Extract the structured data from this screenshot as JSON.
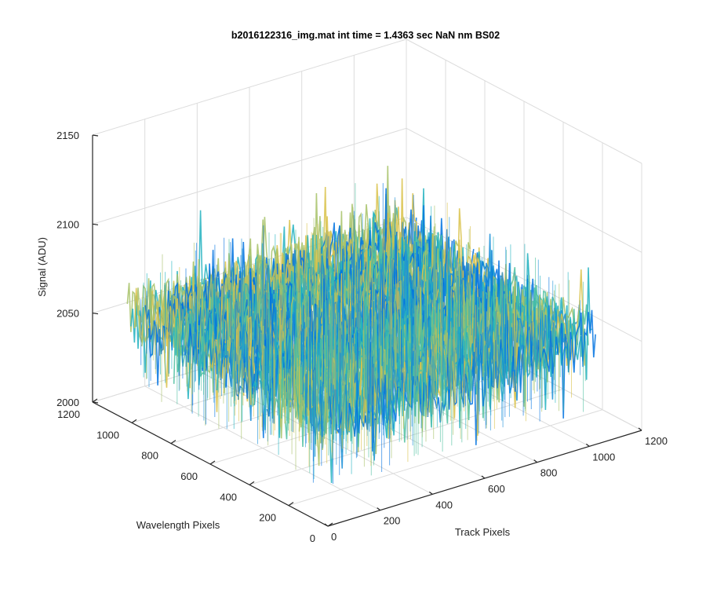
{
  "figure": {
    "background": "#ffffff"
  },
  "chart_data": {
    "type": "surface",
    "title": "b2016122316_img.mat int time = 1.4363 sec  NaN nm BS02",
    "zlabel": "Signal (ADU)",
    "xlabel": "Track Pixels",
    "ylabel": "Wavelength Pixels",
    "xlim": [
      0,
      1200
    ],
    "ylim": [
      0,
      1200
    ],
    "zlim": [
      2000,
      2150
    ],
    "xticks": [
      "0",
      "200",
      "400",
      "600",
      "800",
      "1000",
      "1200"
    ],
    "yticks": [
      "0",
      "200",
      "400",
      "600",
      "800",
      "1000",
      "1200"
    ],
    "zticks": [
      "2000",
      "2050",
      "2100",
      "2150"
    ],
    "x_extent": [
      1,
      1024
    ],
    "y_extent": [
      1,
      1024
    ],
    "z_mean": 2060,
    "z_range_observed": [
      2020,
      2130
    ],
    "grid": true,
    "colormap": "parula",
    "colors": [
      "#0072e0",
      "#1a8fd8",
      "#22b2c0",
      "#4fc0a0",
      "#a7c267",
      "#d9c24a"
    ]
  }
}
